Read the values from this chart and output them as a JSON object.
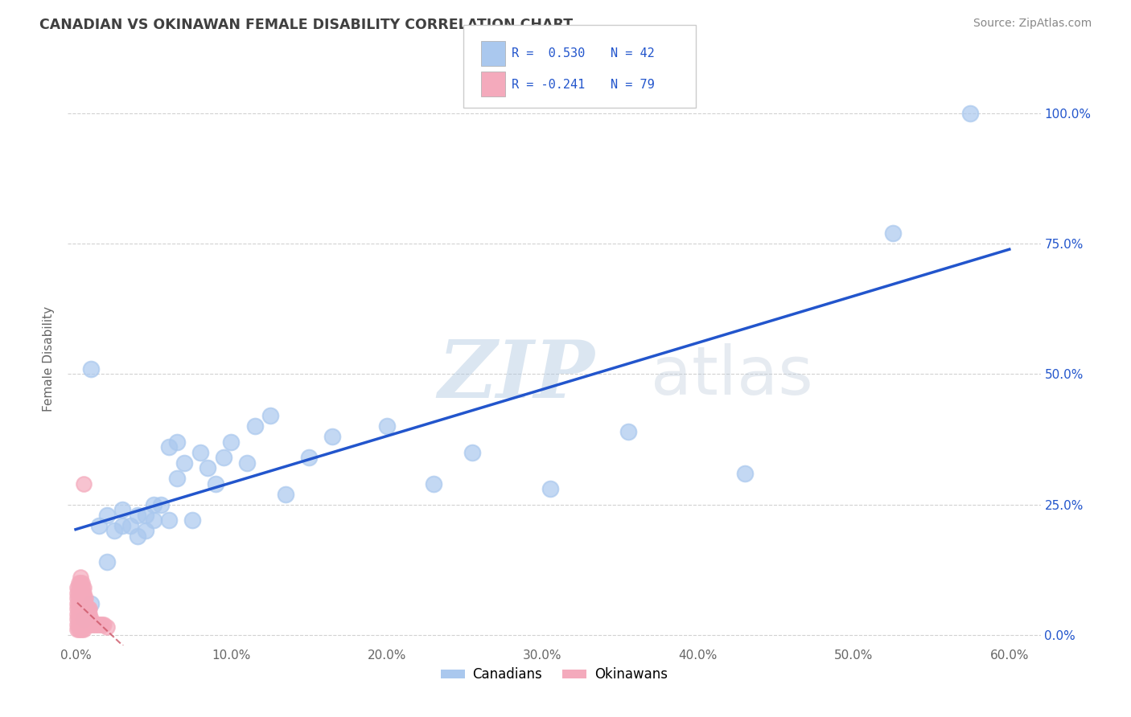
{
  "title": "CANADIAN VS OKINAWAN FEMALE DISABILITY CORRELATION CHART",
  "source_text": "Source: ZipAtlas.com",
  "ylabel": "Female Disability",
  "xlim": [
    -0.005,
    0.62
  ],
  "ylim": [
    -0.02,
    1.08
  ],
  "xtick_labels": [
    "0.0%",
    "",
    "",
    "",
    "",
    "",
    "10.0%",
    "",
    "",
    "",
    "",
    "",
    "20.0%",
    "",
    "",
    "",
    "",
    "",
    "30.0%",
    "",
    "",
    "",
    "",
    "",
    "40.0%",
    "",
    "",
    "",
    "",
    "",
    "50.0%",
    "",
    "",
    "",
    "",
    "",
    "60.0%"
  ],
  "xtick_vals": [
    0.0,
    0.1,
    0.2,
    0.3,
    0.4,
    0.5,
    0.6
  ],
  "ytick_vals": [
    0.0,
    0.25,
    0.5,
    0.75,
    1.0
  ],
  "ytick_labels_right": [
    "0.0%",
    "25.0%",
    "50.0%",
    "75.0%",
    "100.0%"
  ],
  "grid_color": "#cccccc",
  "background_color": "#ffffff",
  "title_color": "#404040",
  "watermark_zip": "ZIP",
  "watermark_atlas": "atlas",
  "legend_R_canadian": "R =  0.530",
  "legend_N_canadian": "N = 42",
  "legend_R_okinawan": "R = -0.241",
  "legend_N_okinawan": "N = 79",
  "canadian_color": "#aac8ee",
  "okinawan_color": "#f4aabc",
  "line_canadian_color": "#2255cc",
  "line_okinawan_color": "#cc5566",
  "canadians_x": [
    0.005,
    0.01,
    0.01,
    0.015,
    0.02,
    0.02,
    0.025,
    0.03,
    0.03,
    0.035,
    0.04,
    0.04,
    0.045,
    0.045,
    0.05,
    0.05,
    0.055,
    0.06,
    0.06,
    0.065,
    0.065,
    0.07,
    0.075,
    0.08,
    0.085,
    0.09,
    0.095,
    0.1,
    0.11,
    0.115,
    0.125,
    0.135,
    0.15,
    0.165,
    0.2,
    0.23,
    0.255,
    0.305,
    0.355,
    0.43,
    0.525,
    0.575
  ],
  "canadians_y": [
    0.03,
    0.06,
    0.51,
    0.21,
    0.14,
    0.23,
    0.2,
    0.21,
    0.24,
    0.21,
    0.19,
    0.23,
    0.2,
    0.23,
    0.22,
    0.25,
    0.25,
    0.22,
    0.36,
    0.3,
    0.37,
    0.33,
    0.22,
    0.35,
    0.32,
    0.29,
    0.34,
    0.37,
    0.33,
    0.4,
    0.42,
    0.27,
    0.34,
    0.38,
    0.4,
    0.29,
    0.35,
    0.28,
    0.39,
    0.31,
    0.77,
    1.0
  ],
  "okinawans_x": [
    0.001,
    0.001,
    0.001,
    0.001,
    0.001,
    0.001,
    0.001,
    0.001,
    0.001,
    0.002,
    0.002,
    0.002,
    0.002,
    0.002,
    0.002,
    0.002,
    0.002,
    0.002,
    0.002,
    0.003,
    0.003,
    0.003,
    0.003,
    0.003,
    0.003,
    0.003,
    0.003,
    0.003,
    0.003,
    0.003,
    0.004,
    0.004,
    0.004,
    0.004,
    0.004,
    0.004,
    0.004,
    0.004,
    0.004,
    0.004,
    0.005,
    0.005,
    0.005,
    0.005,
    0.005,
    0.005,
    0.005,
    0.005,
    0.005,
    0.005,
    0.006,
    0.006,
    0.006,
    0.006,
    0.006,
    0.006,
    0.007,
    0.007,
    0.007,
    0.007,
    0.008,
    0.008,
    0.008,
    0.008,
    0.009,
    0.009,
    0.009,
    0.009,
    0.01,
    0.01,
    0.011,
    0.012,
    0.013,
    0.014,
    0.015,
    0.016,
    0.017,
    0.018,
    0.02
  ],
  "okinawans_y": [
    0.01,
    0.02,
    0.03,
    0.04,
    0.05,
    0.06,
    0.07,
    0.08,
    0.09,
    0.01,
    0.02,
    0.03,
    0.04,
    0.05,
    0.06,
    0.07,
    0.08,
    0.09,
    0.1,
    0.01,
    0.02,
    0.03,
    0.04,
    0.05,
    0.06,
    0.07,
    0.08,
    0.09,
    0.1,
    0.11,
    0.01,
    0.02,
    0.03,
    0.04,
    0.05,
    0.06,
    0.07,
    0.08,
    0.09,
    0.1,
    0.01,
    0.02,
    0.03,
    0.04,
    0.05,
    0.06,
    0.07,
    0.08,
    0.09,
    0.29,
    0.02,
    0.03,
    0.04,
    0.05,
    0.06,
    0.07,
    0.02,
    0.03,
    0.04,
    0.05,
    0.02,
    0.03,
    0.04,
    0.05,
    0.02,
    0.03,
    0.04,
    0.05,
    0.02,
    0.03,
    0.02,
    0.02,
    0.02,
    0.02,
    0.02,
    0.02,
    0.02,
    0.02,
    0.015
  ]
}
